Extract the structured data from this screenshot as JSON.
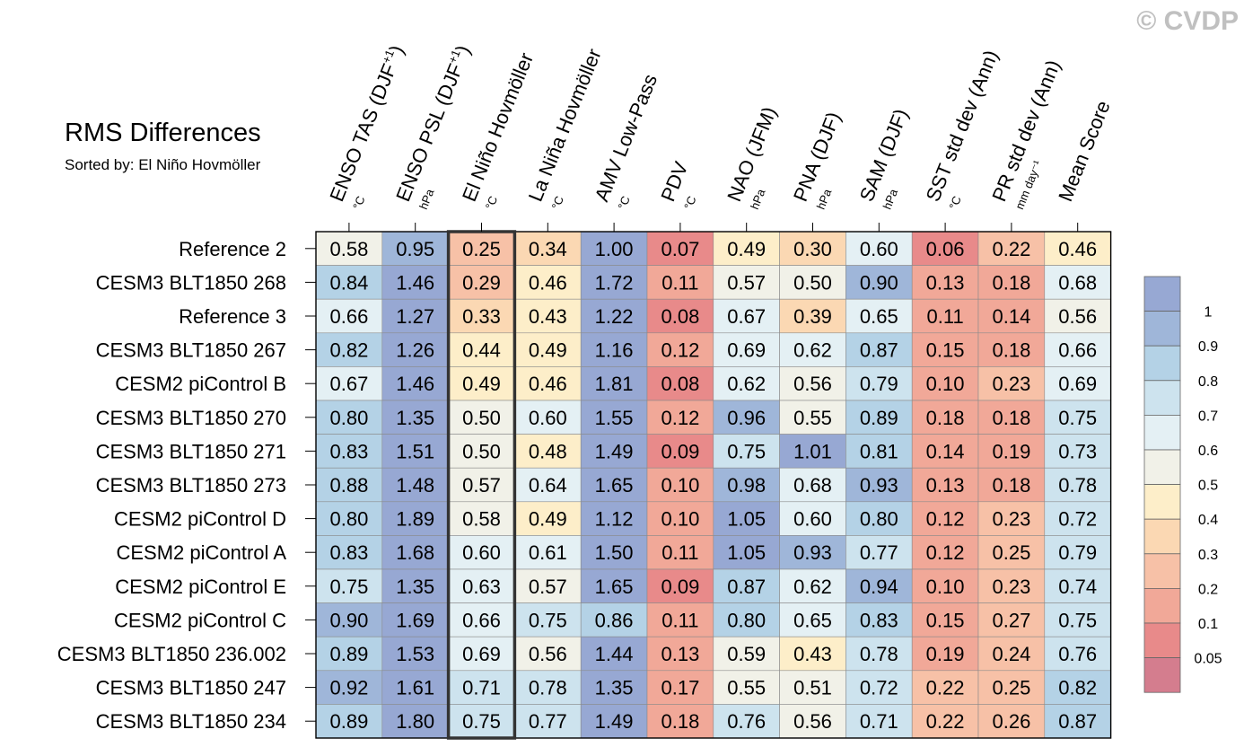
{
  "watermark": "© CVDP",
  "chart_data": {
    "type": "heatmap",
    "title": "RMS Differences",
    "subtitle": "Sorted by: El Niño Hovmöller",
    "highlight_column": 2,
    "columns": [
      {
        "label": "ENSO TAS (DJF",
        "sup": "+1",
        "close": ")",
        "unit": "°C"
      },
      {
        "label": "ENSO PSL (DJF",
        "sup": "+1",
        "close": ")",
        "unit": "hPa"
      },
      {
        "label": "El Niño Hovmöller",
        "sup": "",
        "close": "",
        "unit": "°C"
      },
      {
        "label": "La Niña Hovmöller",
        "sup": "",
        "close": "",
        "unit": "°C"
      },
      {
        "label": "AMV Low-Pass",
        "sup": "",
        "close": "",
        "unit": "°C"
      },
      {
        "label": "PDV",
        "sup": "",
        "close": "",
        "unit": "°C"
      },
      {
        "label": "NAO (JFM)",
        "sup": "",
        "close": "",
        "unit": "hPa"
      },
      {
        "label": "PNA (DJF)",
        "sup": "",
        "close": "",
        "unit": "hPa"
      },
      {
        "label": "SAM (DJF)",
        "sup": "",
        "close": "",
        "unit": "hPa"
      },
      {
        "label": "SST std dev (Ann)",
        "sup": "",
        "close": "",
        "unit": "°C"
      },
      {
        "label": "PR std dev (Ann)",
        "sup": "",
        "close": "",
        "unit": "mm day⁻¹"
      },
      {
        "label": "Mean Score",
        "sup": "",
        "close": "",
        "unit": ""
      }
    ],
    "rows": [
      "Reference 2",
      "CESM3 BLT1850 268",
      "Reference 3",
      "CESM3 BLT1850 267",
      "CESM2 piControl B",
      "CESM3 BLT1850 270",
      "CESM3 BLT1850 271",
      "CESM3 BLT1850 273",
      "CESM2 piControl D",
      "CESM2 piControl A",
      "CESM2 piControl E",
      "CESM2 piControl C",
      "CESM3 BLT1850 236.002",
      "CESM3 BLT1850 247",
      "CESM3 BLT1850 234"
    ],
    "values": [
      [
        0.58,
        0.95,
        0.25,
        0.34,
        1.0,
        0.07,
        0.49,
        0.3,
        0.6,
        0.06,
        0.22,
        0.46
      ],
      [
        0.84,
        1.46,
        0.29,
        0.46,
        1.72,
        0.11,
        0.57,
        0.5,
        0.9,
        0.13,
        0.18,
        0.68
      ],
      [
        0.66,
        1.27,
        0.33,
        0.43,
        1.22,
        0.08,
        0.67,
        0.39,
        0.65,
        0.11,
        0.14,
        0.56
      ],
      [
        0.82,
        1.26,
        0.44,
        0.49,
        1.16,
        0.12,
        0.69,
        0.62,
        0.87,
        0.15,
        0.18,
        0.66
      ],
      [
        0.67,
        1.46,
        0.49,
        0.46,
        1.81,
        0.08,
        0.62,
        0.56,
        0.79,
        0.1,
        0.23,
        0.69
      ],
      [
        0.8,
        1.35,
        0.5,
        0.6,
        1.55,
        0.12,
        0.96,
        0.55,
        0.89,
        0.18,
        0.18,
        0.75
      ],
      [
        0.83,
        1.51,
        0.5,
        0.48,
        1.49,
        0.09,
        0.75,
        1.01,
        0.81,
        0.14,
        0.19,
        0.73
      ],
      [
        0.88,
        1.48,
        0.57,
        0.64,
        1.65,
        0.1,
        0.98,
        0.68,
        0.93,
        0.13,
        0.18,
        0.78
      ],
      [
        0.8,
        1.89,
        0.58,
        0.49,
        1.12,
        0.1,
        1.05,
        0.6,
        0.8,
        0.12,
        0.23,
        0.72
      ],
      [
        0.83,
        1.68,
        0.6,
        0.61,
        1.5,
        0.11,
        1.05,
        0.93,
        0.77,
        0.12,
        0.25,
        0.79
      ],
      [
        0.75,
        1.35,
        0.63,
        0.57,
        1.65,
        0.09,
        0.87,
        0.62,
        0.94,
        0.1,
        0.23,
        0.74
      ],
      [
        0.9,
        1.69,
        0.66,
        0.75,
        0.86,
        0.11,
        0.8,
        0.65,
        0.83,
        0.15,
        0.27,
        0.75
      ],
      [
        0.89,
        1.53,
        0.69,
        0.56,
        1.44,
        0.13,
        0.59,
        0.43,
        0.78,
        0.19,
        0.24,
        0.76
      ],
      [
        0.92,
        1.61,
        0.71,
        0.78,
        1.35,
        0.17,
        0.55,
        0.51,
        0.72,
        0.22,
        0.25,
        0.82
      ],
      [
        0.89,
        1.8,
        0.75,
        0.77,
        1.49,
        0.18,
        0.76,
        0.56,
        0.71,
        0.22,
        0.26,
        0.87
      ]
    ],
    "colorbar": {
      "levels": [
        0.05,
        0.1,
        0.2,
        0.3,
        0.4,
        0.5,
        0.6,
        0.7,
        0.8,
        0.9,
        1
      ],
      "tick_labels": [
        "0.05",
        "0.1",
        "0.2",
        "0.3",
        "0.4",
        "0.5",
        "0.6",
        "0.7",
        "0.8",
        "0.9",
        "1"
      ],
      "colors": [
        "#d47d8e",
        "#e88a8a",
        "#f1a898",
        "#f7c1a7",
        "#fbd8b3",
        "#fdeec9",
        "#f1f1e8",
        "#e4f0f4",
        "#cde3ee",
        "#b4d2e6",
        "#9fb6d9",
        "#97a8d3"
      ]
    }
  }
}
